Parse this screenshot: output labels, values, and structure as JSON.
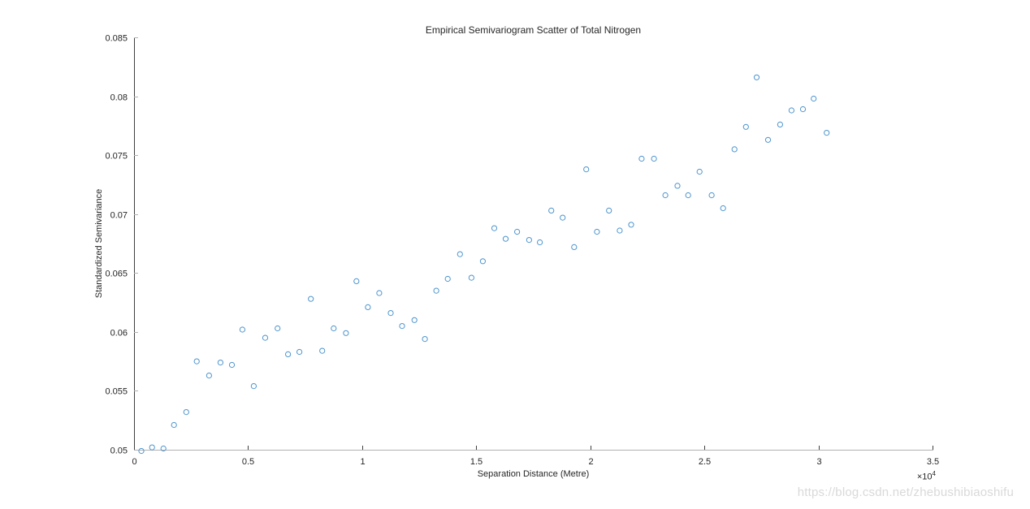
{
  "chart_data": {
    "type": "scatter",
    "title": "Empirical Semivariogram Scatter of Total Nitrogen",
    "xlabel": "Separation Distance (Metre)",
    "ylabel": "Standardized Semivariance",
    "x_axis_multiplier": {
      "base": "×10",
      "exponent": "4"
    },
    "xlim": [
      0,
      35000
    ],
    "ylim": [
      0.05,
      0.085
    ],
    "x_tick_values": [
      0,
      5000,
      10000,
      15000,
      20000,
      25000,
      30000,
      35000
    ],
    "x_tick_labels": [
      "0",
      "0.5",
      "1",
      "1.5",
      "2",
      "2.5",
      "3",
      "3.5"
    ],
    "y_tick_values": [
      0.05,
      0.055,
      0.06,
      0.065,
      0.07,
      0.075,
      0.08,
      0.085
    ],
    "y_tick_labels": [
      "0.05",
      "0.055",
      "0.06",
      "0.065",
      "0.07",
      "0.075",
      "0.08",
      "0.085"
    ],
    "grid": false,
    "legend": null,
    "marker": {
      "shape": "open-circle",
      "color": "#4D95CE",
      "radius_px": 3.1,
      "stroke_px": 1
    },
    "points": [
      [
        320,
        0.0499
      ],
      [
        790,
        0.0502
      ],
      [
        1290,
        0.0501
      ],
      [
        1750,
        0.0521
      ],
      [
        2290,
        0.0532
      ],
      [
        2750,
        0.0575
      ],
      [
        3290,
        0.0563
      ],
      [
        3790,
        0.0574
      ],
      [
        4290,
        0.0572
      ],
      [
        4750,
        0.0602
      ],
      [
        5250,
        0.0554
      ],
      [
        5750,
        0.0595
      ],
      [
        6290,
        0.0603
      ],
      [
        6750,
        0.0581
      ],
      [
        7250,
        0.0583
      ],
      [
        7750,
        0.0628
      ],
      [
        8250,
        0.0584
      ],
      [
        8750,
        0.0603
      ],
      [
        9290,
        0.0599
      ],
      [
        9750,
        0.0643
      ],
      [
        10250,
        0.0621
      ],
      [
        10750,
        0.0633
      ],
      [
        11250,
        0.0616
      ],
      [
        11750,
        0.0605
      ],
      [
        12290,
        0.061
      ],
      [
        12750,
        0.0594
      ],
      [
        13250,
        0.0635
      ],
      [
        13750,
        0.0645
      ],
      [
        14290,
        0.0666
      ],
      [
        14790,
        0.0646
      ],
      [
        15290,
        0.066
      ],
      [
        15790,
        0.0688
      ],
      [
        16290,
        0.0679
      ],
      [
        16790,
        0.0685
      ],
      [
        17320,
        0.0678
      ],
      [
        17790,
        0.0676
      ],
      [
        18290,
        0.0703
      ],
      [
        18790,
        0.0697
      ],
      [
        19290,
        0.0672
      ],
      [
        19820,
        0.0738
      ],
      [
        20290,
        0.0685
      ],
      [
        20820,
        0.0703
      ],
      [
        21290,
        0.0686
      ],
      [
        21790,
        0.0691
      ],
      [
        22250,
        0.0747
      ],
      [
        22790,
        0.0747
      ],
      [
        23290,
        0.0716
      ],
      [
        23820,
        0.0724
      ],
      [
        24290,
        0.0716
      ],
      [
        24790,
        0.0736
      ],
      [
        25320,
        0.0716
      ],
      [
        25820,
        0.0705
      ],
      [
        26320,
        0.0755
      ],
      [
        26820,
        0.0774
      ],
      [
        27290,
        0.0816
      ],
      [
        27790,
        0.0763
      ],
      [
        28320,
        0.0776
      ],
      [
        28820,
        0.0788
      ],
      [
        29320,
        0.0789
      ],
      [
        29790,
        0.0798
      ],
      [
        30360,
        0.0769
      ]
    ]
  },
  "watermark": {
    "text": "https://blog.csdn.net/zhebushibiaoshifu",
    "color": "#d9d9d9"
  },
  "colors": {
    "background": "#ffffff",
    "text": "#262626",
    "spine_left": "#3f3f3f",
    "spine_bottom": "#b2b2b2",
    "tick_x": "#3f3f3f",
    "tick_y": "#b2b2b2"
  }
}
